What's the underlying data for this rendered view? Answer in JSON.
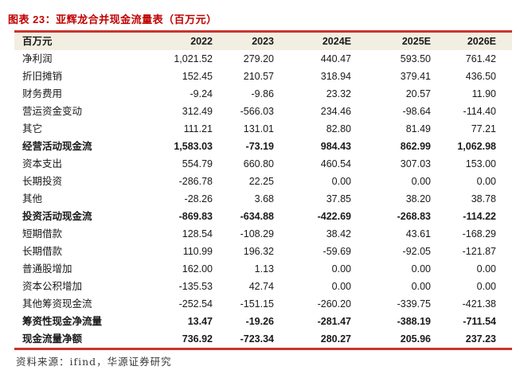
{
  "title": "图表 23：亚辉龙合并现金流量表（百万元）",
  "source_note": "资料来源：ifind，华源证券研究",
  "colors": {
    "title_red": "#c00000",
    "rule_red": "#c9342d",
    "header_bg": "#f2eee2",
    "text": "#1a1a1a"
  },
  "chart_data": {
    "type": "table",
    "title": "亚辉龙合并现金流量表（百万元）",
    "unit": "百万元",
    "columns": [
      "百万元",
      "2022",
      "2023",
      "2024E",
      "2025E",
      "2026E"
    ],
    "rows": [
      {
        "label": "净利润",
        "values": [
          "1,021.52",
          "279.20",
          "440.47",
          "593.50",
          "761.42"
        ],
        "bold": false
      },
      {
        "label": "折旧摊销",
        "values": [
          "152.45",
          "210.57",
          "318.94",
          "379.41",
          "436.50"
        ],
        "bold": false
      },
      {
        "label": "财务费用",
        "values": [
          "-9.24",
          "-9.86",
          "23.32",
          "20.57",
          "11.90"
        ],
        "bold": false
      },
      {
        "label": "营运资金变动",
        "values": [
          "312.49",
          "-566.03",
          "234.46",
          "-98.64",
          "-114.40"
        ],
        "bold": false
      },
      {
        "label": "其它",
        "values": [
          "111.21",
          "131.01",
          "82.80",
          "81.49",
          "77.21"
        ],
        "bold": false
      },
      {
        "label": "经营活动现金流",
        "values": [
          "1,583.03",
          "-73.19",
          "984.43",
          "862.99",
          "1,062.98"
        ],
        "bold": true
      },
      {
        "label": "资本支出",
        "values": [
          "554.79",
          "660.80",
          "460.54",
          "307.03",
          "153.00"
        ],
        "bold": false
      },
      {
        "label": "长期投资",
        "values": [
          "-286.78",
          "22.25",
          "0.00",
          "0.00",
          "0.00"
        ],
        "bold": false
      },
      {
        "label": "其他",
        "values": [
          "-28.26",
          "3.68",
          "37.85",
          "38.20",
          "38.78"
        ],
        "bold": false
      },
      {
        "label": "投资活动现金流",
        "values": [
          "-869.83",
          "-634.88",
          "-422.69",
          "-268.83",
          "-114.22"
        ],
        "bold": true
      },
      {
        "label": "短期借款",
        "values": [
          "128.54",
          "-108.29",
          "38.42",
          "43.61",
          "-168.29"
        ],
        "bold": false
      },
      {
        "label": "长期借款",
        "values": [
          "110.99",
          "196.32",
          "-59.69",
          "-92.05",
          "-121.87"
        ],
        "bold": false
      },
      {
        "label": "普通股增加",
        "values": [
          "162.00",
          "1.13",
          "0.00",
          "0.00",
          "0.00"
        ],
        "bold": false
      },
      {
        "label": "资本公积增加",
        "values": [
          "-135.53",
          "42.74",
          "0.00",
          "0.00",
          "0.00"
        ],
        "bold": false
      },
      {
        "label": "其他筹资现金流",
        "values": [
          "-252.54",
          "-151.15",
          "-260.20",
          "-339.75",
          "-421.38"
        ],
        "bold": false
      },
      {
        "label": "筹资性现金净流量",
        "values": [
          "13.47",
          "-19.26",
          "-281.47",
          "-388.19",
          "-711.54"
        ],
        "bold": true
      },
      {
        "label": "现金流量净额",
        "values": [
          "736.92",
          "-723.34",
          "280.27",
          "205.96",
          "237.23"
        ],
        "bold": true
      }
    ]
  }
}
